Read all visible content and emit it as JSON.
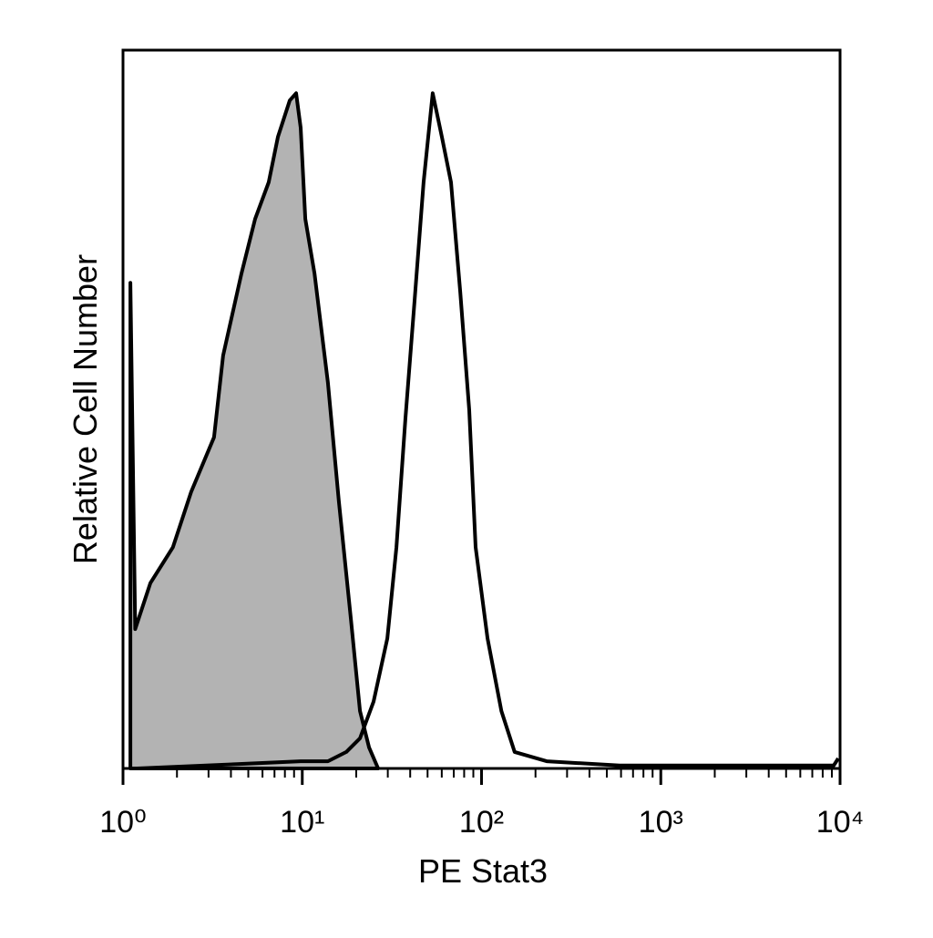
{
  "chart_data": {
    "type": "histogram-overlay",
    "x_label": "PE Stat3",
    "y_label": "Relative Cell Number",
    "xscale": "log",
    "xlim": [
      1,
      10000
    ],
    "ylim": [
      0,
      100
    ],
    "xticks": [
      {
        "value": 1,
        "label": "10⁰"
      },
      {
        "value": 10,
        "label": "10¹"
      },
      {
        "value": 100,
        "label": "10²"
      },
      {
        "value": 1000,
        "label": "10³"
      },
      {
        "value": 10000,
        "label": "10⁴"
      }
    ],
    "xminorticks": [
      2,
      3,
      4,
      5,
      6,
      7,
      8,
      9,
      20,
      30,
      40,
      50,
      60,
      70,
      80,
      90,
      200,
      300,
      400,
      500,
      600,
      700,
      800,
      900,
      2000,
      3000,
      4000,
      5000,
      6000,
      7000,
      8000,
      9000
    ],
    "series": [
      {
        "color": "#b3b3b3",
        "filled": true,
        "x": [
          1.1,
          1.17,
          1.42,
          1.9,
          2.4,
          3.22,
          3.62,
          4.58,
          5.46,
          6.5,
          7.31,
          8.51,
          9.24,
          9.8,
          10.4,
          11.7,
          13.9,
          16.0,
          18.7,
          21.0,
          23.6,
          26.5
        ],
        "values": [
          67.6,
          19.4,
          25.8,
          30.8,
          38.5,
          46.1,
          57.5,
          68.9,
          76.5,
          81.6,
          87.9,
          93.0,
          94.0,
          89.2,
          76.5,
          68.9,
          53.7,
          37.2,
          20.7,
          8.0,
          2.9,
          0
        ]
      },
      {
        "color": "#000000",
        "filled": false,
        "x": [
          1.2,
          4.32,
          9.8,
          13.9,
          17.6,
          21.0,
          25.0,
          29.8,
          33.5,
          37.6,
          42.3,
          47.5,
          53.4,
          60.1,
          67.6,
          76.0,
          85.4,
          92.7,
          108,
          129,
          153,
          231,
          589,
          9210,
          9770
        ],
        "values": [
          0,
          0.6,
          1.0,
          1.0,
          2.3,
          4.2,
          9.3,
          18.1,
          30.8,
          48.6,
          65.1,
          81.6,
          94.0,
          87.9,
          81.6,
          66.4,
          49.9,
          30.8,
          18.1,
          8.0,
          2.3,
          1.0,
          0.4,
          0.4,
          1.4
        ]
      }
    ]
  }
}
